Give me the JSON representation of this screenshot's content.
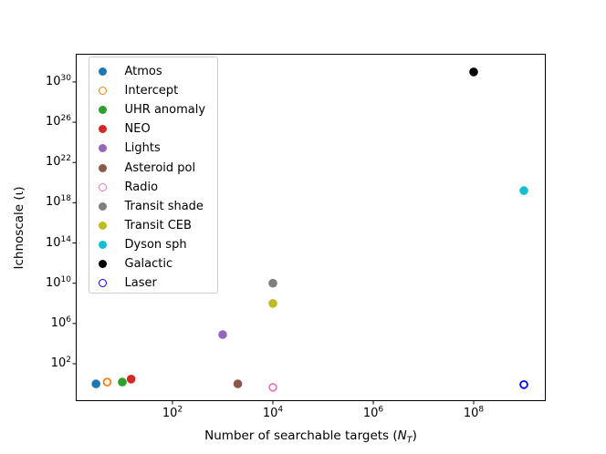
{
  "figure": {
    "background": "#ffffff",
    "frame_color": "#000000"
  },
  "chart_data": {
    "type": "scatter",
    "title": "",
    "xlabel": {
      "plain": "Number of searchable targets (N_T)",
      "prefix": "Number of searchable targets (",
      "variable": "N",
      "subscript": "T",
      "suffix": ")"
    },
    "ylabel": "Ichnoscale (ι)",
    "x_scale": "log",
    "y_scale": "log",
    "xlim_exp": [
      0.073,
      9.436
    ],
    "ylim_exp": [
      -1.714,
      32.8
    ],
    "xticks_exp": [
      2,
      4,
      6,
      8
    ],
    "yticks_exp": [
      2,
      6,
      10,
      14,
      18,
      22,
      26,
      30
    ],
    "tick_label_base": "10",
    "grid": false,
    "legend_position": "upper left",
    "series": [
      {
        "name": "Atmos",
        "color": "#1f77b4",
        "filled": true,
        "x": 3,
        "y": 1.0
      },
      {
        "name": "Intercept",
        "color": "#ff7f0e",
        "filled": false,
        "x": 5,
        "y": 1.5
      },
      {
        "name": "UHR anomaly",
        "color": "#2ca02c",
        "filled": true,
        "x": 10,
        "y": 1.5
      },
      {
        "name": "NEO",
        "color": "#d62728",
        "filled": true,
        "x": 15,
        "y": 3.0
      },
      {
        "name": "Lights",
        "color": "#9467bd",
        "filled": true,
        "x": 1000,
        "y": 80000
      },
      {
        "name": "Asteroid pol",
        "color": "#8c564b",
        "filled": true,
        "x": 2000,
        "y": 1.0
      },
      {
        "name": "Radio",
        "color": "#e377c2",
        "filled": false,
        "x": 10000,
        "y": 0.45
      },
      {
        "name": "Transit shade",
        "color": "#7f7f7f",
        "filled": true,
        "x": 10000,
        "y": 10000000000.0
      },
      {
        "name": "Transit CEB",
        "color": "#bcbd22",
        "filled": true,
        "x": 10000,
        "y": 100000000.0
      },
      {
        "name": "Dyson sph",
        "color": "#17becf",
        "filled": true,
        "x": 1000000000.0,
        "y": 1.6e+19
      },
      {
        "name": "Galactic",
        "color": "#000000",
        "filled": true,
        "x": 100000000.0,
        "y": 1e+31
      },
      {
        "name": "Laser",
        "color": "#0000ff",
        "filled": false,
        "x": 1000000000.0,
        "y": 0.85
      }
    ]
  }
}
